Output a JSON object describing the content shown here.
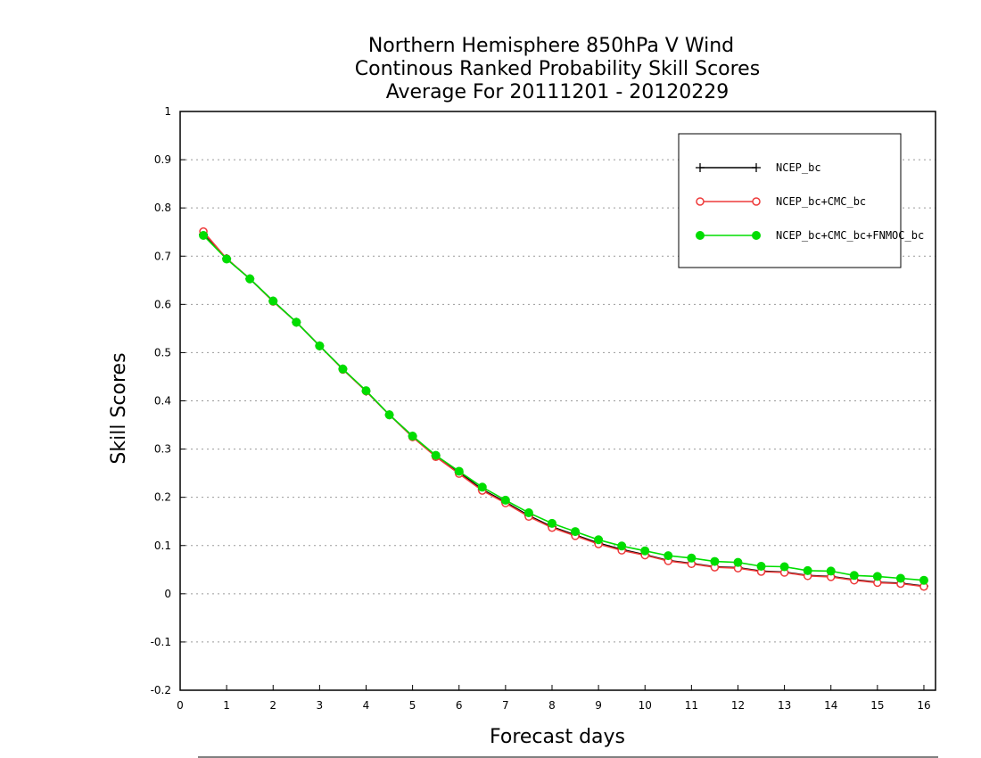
{
  "chart_data": {
    "type": "line",
    "title": [
      "Northern Hemisphere 850hPa V Wind",
      "Continous Ranked Probability Skill Scores",
      "Average For 20111201 - 20120229"
    ],
    "xlabel": "Forecast days",
    "ylabel": "Skill Scores",
    "xlim": [
      0,
      16.25
    ],
    "ylim": [
      -0.2,
      1.0
    ],
    "xticks": [
      0,
      1,
      2,
      3,
      4,
      5,
      6,
      7,
      8,
      9,
      10,
      11,
      12,
      13,
      14,
      15,
      16
    ],
    "yticks": [
      -0.2,
      -0.1,
      0,
      0.1,
      0.2,
      0.3,
      0.4,
      0.5,
      0.6,
      0.7,
      0.8,
      0.9,
      1
    ],
    "ytick_labels": [
      "-0.2",
      "-0.1",
      "0",
      "0.1",
      "0.2",
      "0.3",
      "0.4",
      "0.5",
      "0.6",
      "0.7",
      "0.8",
      "0.9",
      "1"
    ],
    "grid": "horizontal-dotted",
    "legend_position": "top-right",
    "x": [
      0.5,
      1,
      1.5,
      2,
      2.5,
      3,
      3.5,
      4,
      4.5,
      5,
      5.5,
      6,
      6.5,
      7,
      7.5,
      8,
      8.5,
      9,
      9.5,
      10,
      10.5,
      11,
      11.5,
      12,
      12.5,
      13,
      13.5,
      14,
      14.5,
      15,
      15.5,
      16
    ],
    "series": [
      {
        "name": "NCEP_bc",
        "color": "#000000",
        "marker": "plus",
        "values": [
          0.745,
          0.695,
          0.653,
          0.607,
          0.563,
          0.514,
          0.466,
          0.42,
          0.371,
          0.327,
          0.286,
          0.252,
          0.216,
          0.19,
          0.162,
          0.139,
          0.122,
          0.105,
          0.092,
          0.081,
          0.069,
          0.063,
          0.056,
          0.054,
          0.047,
          0.045,
          0.038,
          0.036,
          0.029,
          0.024,
          0.022,
          0.016
        ]
      },
      {
        "name": "NCEP_bc+CMC_bc",
        "color": "#ee3a3a",
        "marker": "open-circle",
        "values": [
          0.751,
          0.695,
          0.653,
          0.606,
          0.563,
          0.514,
          0.465,
          0.42,
          0.371,
          0.325,
          0.284,
          0.249,
          0.214,
          0.188,
          0.16,
          0.137,
          0.12,
          0.103,
          0.09,
          0.08,
          0.068,
          0.062,
          0.055,
          0.053,
          0.046,
          0.044,
          0.037,
          0.035,
          0.028,
          0.023,
          0.021,
          0.015
        ]
      },
      {
        "name": "NCEP_bc+CMC_bc+FNMOC_bc",
        "color": "#00dd00",
        "marker": "filled-circle",
        "values": [
          0.743,
          0.694,
          0.653,
          0.607,
          0.563,
          0.514,
          0.466,
          0.421,
          0.371,
          0.327,
          0.287,
          0.254,
          0.221,
          0.194,
          0.168,
          0.146,
          0.129,
          0.112,
          0.099,
          0.089,
          0.079,
          0.074,
          0.067,
          0.065,
          0.057,
          0.056,
          0.048,
          0.047,
          0.038,
          0.036,
          0.032,
          0.028
        ]
      }
    ]
  }
}
